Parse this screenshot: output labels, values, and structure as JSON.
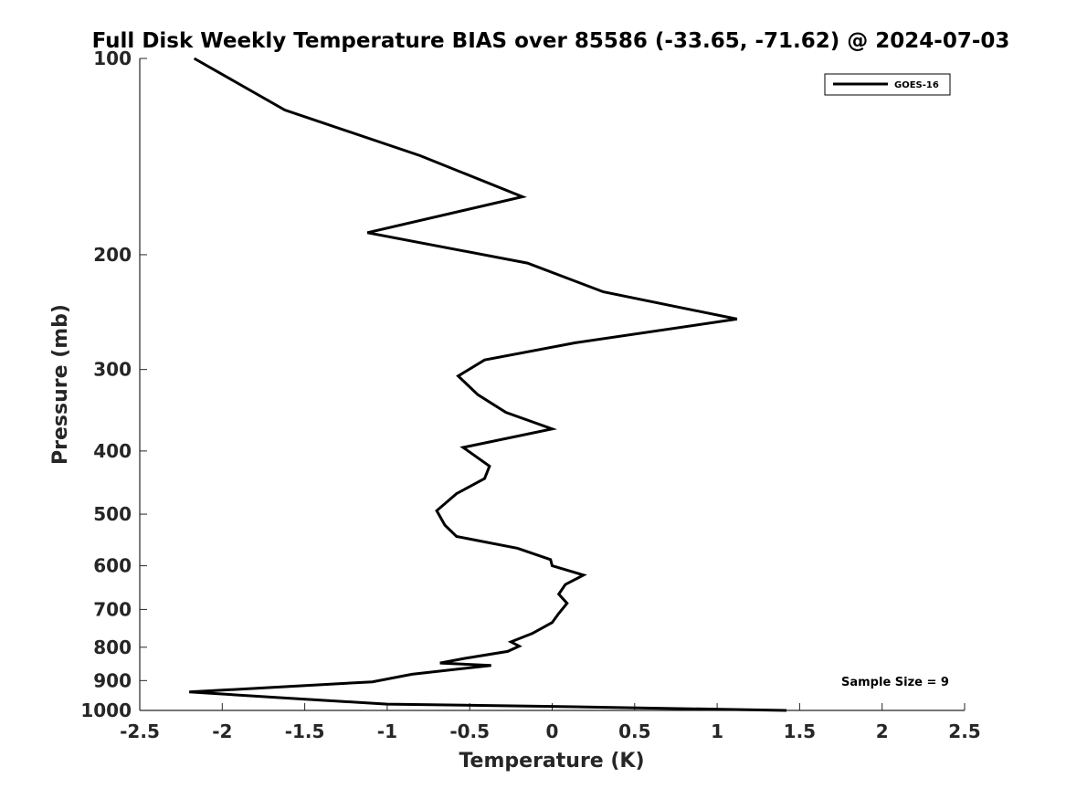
{
  "chart_data": {
    "type": "line",
    "title": "Full Disk Weekly Temperature BIAS over 85586 (-33.65, -71.62) @ 2024-07-03",
    "xlabel": "Temperature (K)",
    "ylabel": "Pressure (mb)",
    "xlim": [
      -2.5,
      2.5
    ],
    "ylim": [
      1000,
      100
    ],
    "yscale": "log",
    "y_reversed": true,
    "x_ticks": [
      -2.5,
      -2,
      -1.5,
      -1,
      -0.5,
      0,
      0.5,
      1,
      1.5,
      2,
      2.5
    ],
    "x_tick_labels": [
      "-2.5",
      "-2",
      "-1.5",
      "-1",
      "-0.5",
      "0",
      "0.5",
      "1",
      "1.5",
      "2",
      "2.5"
    ],
    "y_ticks": [
      100,
      200,
      300,
      400,
      500,
      600,
      700,
      800,
      900,
      1000
    ],
    "y_tick_labels": [
      "100",
      "200",
      "300",
      "400",
      "500",
      "600",
      "700",
      "800",
      "900",
      "1000"
    ],
    "grid": false,
    "legend_position": "top-right",
    "series": [
      {
        "name": "GOES-16",
        "color": "#000000",
        "points": [
          [
            -2.17,
            100
          ],
          [
            -1.62,
            120
          ],
          [
            -0.8,
            141
          ],
          [
            -0.18,
            163
          ],
          [
            -1.12,
            185
          ],
          [
            -0.15,
            206
          ],
          [
            0.31,
            228
          ],
          [
            1.12,
            251
          ],
          [
            0.14,
            273
          ],
          [
            -0.41,
            290
          ],
          [
            -0.57,
            307
          ],
          [
            -0.45,
            328
          ],
          [
            -0.28,
            349
          ],
          [
            0.0,
            370
          ],
          [
            -0.54,
            395
          ],
          [
            -0.38,
            422
          ],
          [
            -0.41,
            441
          ],
          [
            -0.58,
            465
          ],
          [
            -0.7,
            494
          ],
          [
            -0.65,
            520
          ],
          [
            -0.58,
            541
          ],
          [
            -0.21,
            564
          ],
          [
            -0.01,
            587
          ],
          [
            0.0,
            600
          ],
          [
            0.19,
            620
          ],
          [
            0.08,
            641
          ],
          [
            0.04,
            663
          ],
          [
            0.09,
            685
          ],
          [
            0.04,
            710
          ],
          [
            0.0,
            733
          ],
          [
            -0.12,
            762
          ],
          [
            -0.25,
            785
          ],
          [
            -0.2,
            797
          ],
          [
            -0.27,
            812
          ],
          [
            -0.53,
            832
          ],
          [
            -0.68,
            846
          ],
          [
            -0.37,
            853
          ],
          [
            -0.85,
            880
          ],
          [
            -1.09,
            904
          ],
          [
            -1.57,
            918
          ],
          [
            -2.2,
            937
          ],
          [
            -1.54,
            960
          ],
          [
            -1.0,
            978
          ],
          [
            0.0,
            986
          ],
          [
            1.42,
            1000
          ]
        ]
      }
    ],
    "annotations": [
      {
        "text": "Sample Size = 9"
      }
    ]
  }
}
